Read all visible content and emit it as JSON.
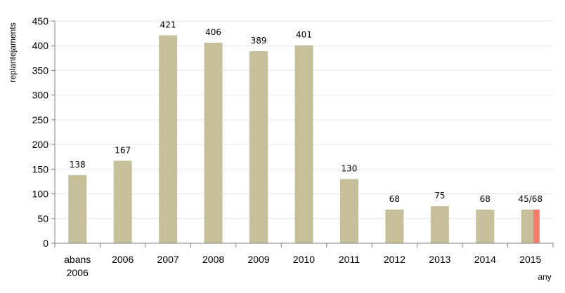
{
  "chart_data": {
    "type": "bar",
    "categories": [
      [
        "abans",
        "2006"
      ],
      [
        "2006"
      ],
      [
        "2007"
      ],
      [
        "2008"
      ],
      [
        "2009"
      ],
      [
        "2010"
      ],
      [
        "2011"
      ],
      [
        "2012"
      ],
      [
        "2013"
      ],
      [
        "2014"
      ],
      [
        "2015"
      ]
    ],
    "values": [
      138,
      167,
      421,
      406,
      389,
      401,
      130,
      68,
      75,
      68,
      68
    ],
    "highlight": {
      "index": 10,
      "value": 45,
      "total": 68
    },
    "data_labels": [
      "138",
      "167",
      "421",
      "406",
      "389",
      "401",
      "130",
      "68",
      "75",
      "68",
      "45/68"
    ],
    "ylabel": "replantejaments",
    "xlabel": "any",
    "ylim": [
      0,
      450
    ],
    "yticks": [
      0,
      50,
      100,
      150,
      200,
      250,
      300,
      350,
      400,
      450
    ],
    "grid": true,
    "colors": {
      "bar": "#c6bf9a",
      "highlight": "#f47a6a",
      "grid": "#e6e6e6",
      "axis": "#7f7f7f"
    }
  }
}
